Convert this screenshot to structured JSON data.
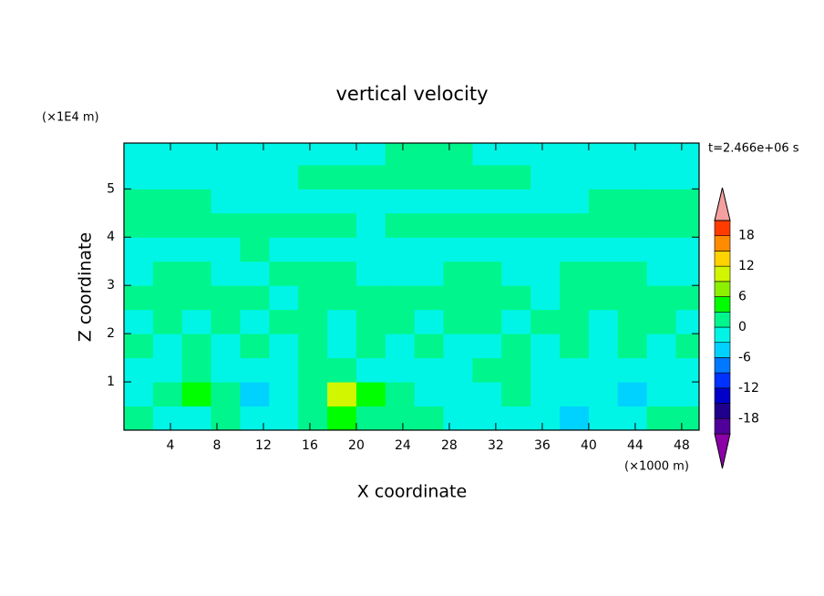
{
  "chart_data": {
    "type": "contour",
    "title": "vertical velocity",
    "xlabel": "X coordinate",
    "ylabel": "Z coordinate",
    "x_unit": "(×1000 m)",
    "y_unit": "(×1E4 m)",
    "annotation": "t=2.466e+06 s",
    "xlim": [
      0,
      49.5
    ],
    "ylim": [
      0,
      5.95
    ],
    "xticks": [
      4,
      8,
      12,
      16,
      20,
      24,
      28,
      32,
      36,
      40,
      44,
      48
    ],
    "yticks": [
      1,
      2,
      3,
      4,
      5
    ],
    "grid_x": [
      1.25,
      3.75,
      6.25,
      8.75,
      11.25,
      13.75,
      16.25,
      18.75,
      21.25,
      23.75,
      26.25,
      28.75,
      31.25,
      33.75,
      36.25,
      38.75,
      41.25,
      43.75,
      46.25,
      48.75
    ],
    "grid_y": [
      0.25,
      0.75,
      1.25,
      1.75,
      2.25,
      2.75,
      3.25,
      3.75,
      4.25,
      4.75,
      5.25,
      5.75
    ],
    "z": [
      [
        1.5,
        -1,
        -1,
        1.5,
        -1,
        -1,
        1.5,
        4,
        1.5,
        1.5,
        1.5,
        -1,
        -1,
        -1,
        -1,
        -4,
        -1,
        -1,
        1.5,
        1.5
      ],
      [
        -1,
        1.5,
        4,
        1.5,
        -4,
        -1,
        1.5,
        10,
        4,
        1.5,
        -1,
        -1,
        -1,
        1.5,
        -1,
        -1,
        -1,
        -4,
        -1,
        -1
      ],
      [
        -1,
        -1,
        1.5,
        -1,
        -1,
        -1,
        1.5,
        1.5,
        -1,
        -1,
        -1,
        -1,
        1.5,
        1.5,
        -1,
        -1,
        -1,
        -1,
        -1,
        -1
      ],
      [
        1.5,
        -1,
        1.5,
        -1,
        1.5,
        -1,
        1.5,
        -1,
        1.5,
        -1,
        1.5,
        -1,
        -1,
        1.5,
        -1,
        1.5,
        -1,
        1.5,
        -1,
        1.5
      ],
      [
        -1,
        1.5,
        -1,
        1.5,
        -1,
        1.5,
        1.5,
        -1,
        1.5,
        1.5,
        -1,
        1.5,
        1.5,
        -1,
        1.5,
        1.5,
        -1,
        1.5,
        1.5,
        -1
      ],
      [
        1.5,
        1.5,
        1.5,
        1.5,
        1.5,
        -1,
        1.5,
        1.5,
        1.5,
        1.5,
        1.5,
        1.5,
        1.5,
        1.5,
        -1,
        1.5,
        1.5,
        1.5,
        1.5,
        1.5
      ],
      [
        -1,
        1.5,
        1.5,
        -1,
        -1,
        1.5,
        1.5,
        1.5,
        -1,
        -1,
        -1,
        1.5,
        1.5,
        -1,
        -1,
        1.5,
        1.5,
        1.5,
        -1,
        -1
      ],
      [
        -1,
        -1,
        -1,
        -1,
        1.5,
        -1,
        -1,
        -1,
        -1,
        -1,
        -1,
        -1,
        -1,
        -1,
        -1,
        -1,
        -1,
        -1,
        -1,
        -1
      ],
      [
        1.5,
        1.5,
        1.5,
        1.5,
        1.5,
        1.5,
        1.5,
        1.5,
        -1,
        1.5,
        1.5,
        1.5,
        1.5,
        1.5,
        1.5,
        1.5,
        1.5,
        1.5,
        1.5,
        1.5
      ],
      [
        1.5,
        1.5,
        1.5,
        -1,
        -1,
        -1,
        -1,
        -1,
        -1,
        -1,
        -1,
        -1,
        -1,
        -1,
        -1,
        -1,
        1.5,
        1.5,
        1.5,
        1.5
      ],
      [
        -1,
        -1,
        -1,
        -1,
        -1,
        -1,
        1.5,
        1.5,
        1.5,
        1.5,
        1.5,
        1.5,
        1.5,
        1.5,
        -1,
        -1,
        -1,
        -1,
        -1,
        -1
      ],
      [
        -1,
        -1,
        -1,
        -1,
        -1,
        -1,
        -1,
        -1,
        -1,
        1.5,
        1.5,
        1.5,
        -1,
        -1,
        -1,
        -1,
        -1,
        -1,
        -1,
        -1
      ]
    ],
    "levels": [
      -21,
      -18,
      -15,
      -12,
      -9,
      -6,
      -3,
      0,
      3,
      6,
      9,
      12,
      15,
      18,
      21
    ],
    "colors": [
      "#8c00a8",
      "#50009a",
      "#1e008c",
      "#0000c8",
      "#0032ff",
      "#0078ff",
      "#00d2ff",
      "#00f5e6",
      "#00f58c",
      "#00ff00",
      "#8cf000",
      "#d2f500",
      "#ffd200",
      "#ff8c00",
      "#ff3c00",
      "#f5a0a0"
    ],
    "colorbar_ticks": [
      -18,
      -12,
      -6,
      0,
      6,
      12,
      18
    ]
  }
}
